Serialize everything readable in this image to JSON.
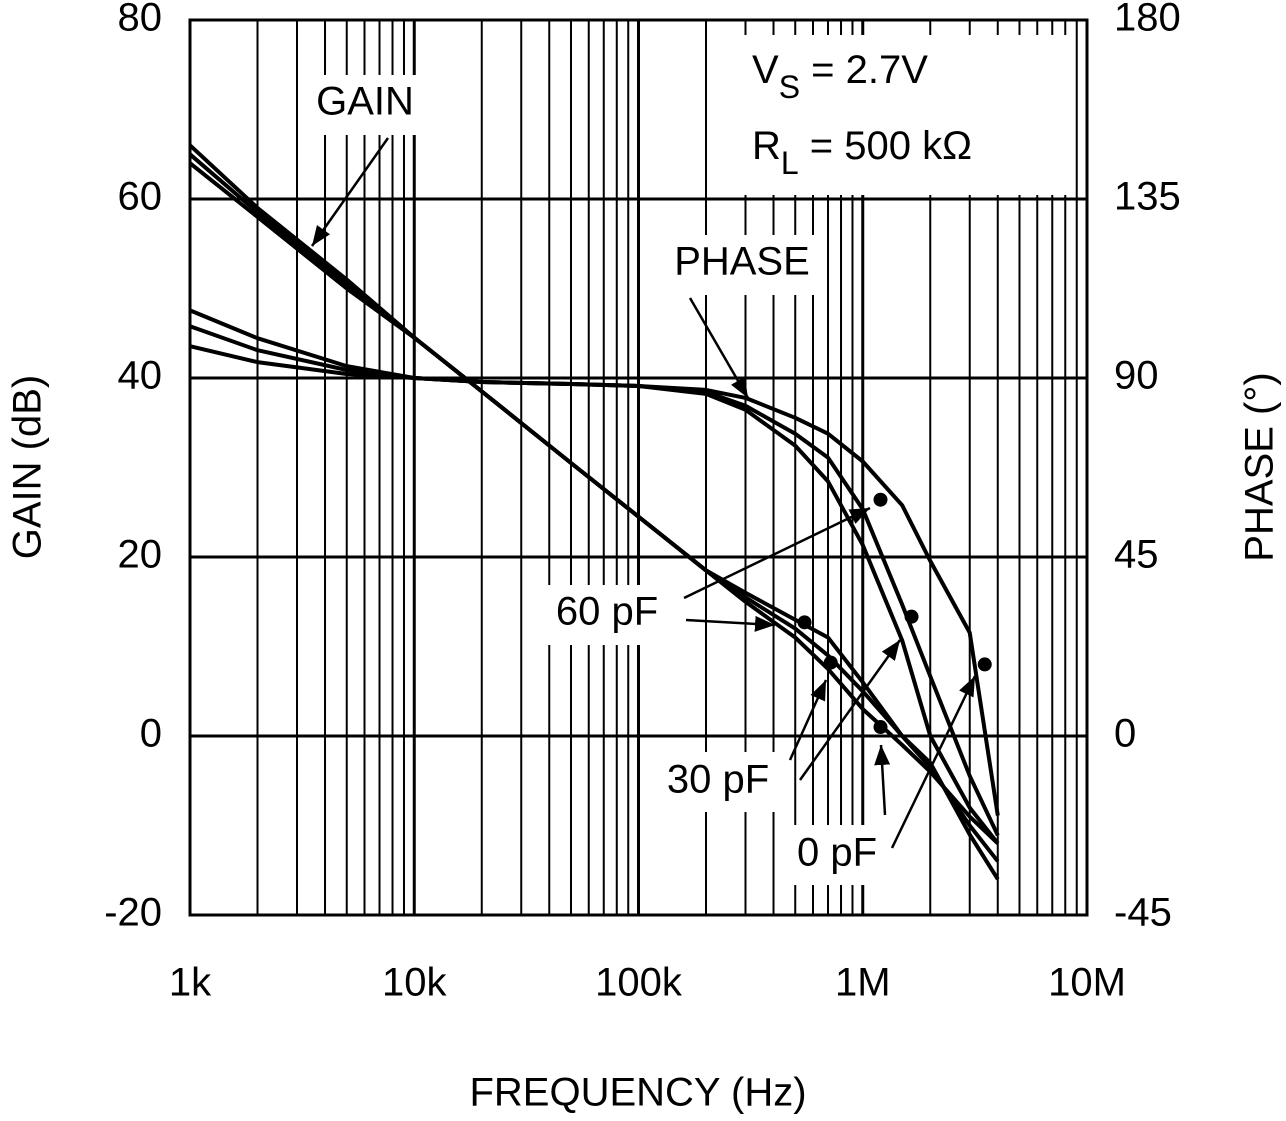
{
  "chart_data": {
    "type": "line",
    "x_axis_label": "FREQUENCY (Hz)",
    "y_axis_label": "GAIN (dB)",
    "y2_axis_label": "PHASE (°)",
    "x_scale": "log",
    "grid": true,
    "minor_grid": true,
    "xlim": [
      1000,
      10000000
    ],
    "xticks": [
      {
        "value": 1000,
        "label": "1k"
      },
      {
        "value": 10000,
        "label": "10k"
      },
      {
        "value": 100000,
        "label": "100k"
      },
      {
        "value": 1000000,
        "label": "1M"
      },
      {
        "value": 10000000,
        "label": "10M"
      }
    ],
    "ylim": [
      -20,
      80
    ],
    "yticks": [
      80,
      60,
      40,
      20,
      0,
      -20
    ],
    "y2lim": [
      -45,
      180
    ],
    "y2ticks": [
      180,
      135,
      90,
      45,
      0,
      -45
    ],
    "gain_label": "GAIN",
    "phase_label": "PHASE",
    "conditions": [
      {
        "main": "V",
        "sub": "S",
        "rest": " = 2.7V"
      },
      {
        "main": "R",
        "sub": "L",
        "rest": " = 500 kΩ"
      }
    ],
    "x": [
      1000,
      2000,
      5000,
      10000,
      20000,
      50000,
      100000,
      200000,
      300000,
      500000,
      700000,
      1000000,
      1500000,
      2000000,
      3000000,
      4000000
    ],
    "series": [
      {
        "name": "60 pF",
        "color": "#000000",
        "gain": [
          66,
          59,
          51,
          44.5,
          38.5,
          30.5,
          24.5,
          18.5,
          16,
          13,
          11,
          6,
          0,
          -3,
          -11,
          -16
        ],
        "phase": [
          107,
          100,
          93,
          90,
          89,
          88.5,
          88,
          86,
          82,
          73,
          64,
          48,
          24,
          0,
          -18,
          -27
        ],
        "gain_marker": [
          550000,
          12.7
        ],
        "phase_marker": [
          1200000,
          59.4
        ]
      },
      {
        "name": "30 pF",
        "color": "#000000",
        "gain": [
          65,
          58.5,
          50.5,
          44.5,
          38.5,
          30.5,
          24.5,
          18.5,
          15.5,
          12,
          9,
          5,
          0,
          -3.5,
          -10,
          -14
        ],
        "phase": [
          103,
          97,
          92,
          90,
          89,
          88.5,
          88,
          86.5,
          83,
          76,
          70,
          57,
          33,
          15,
          -10,
          -25
        ],
        "gain_marker": [
          720000,
          8.2
        ],
        "phase_marker": [
          1650000,
          30
        ]
      },
      {
        "name": "0 pF",
        "color": "#000000",
        "gain": [
          64,
          58,
          50,
          44.5,
          38.5,
          30.5,
          24.5,
          18.5,
          15,
          11,
          7.5,
          3,
          -1,
          -4,
          -9,
          -12
        ],
        "phase": [
          98,
          94,
          91,
          90,
          89,
          88.5,
          88,
          87,
          85,
          80,
          76,
          69,
          58,
          44,
          26,
          -20
        ],
        "gain_marker": [
          1200000,
          1
        ],
        "phase_marker": [
          3500000,
          18
        ]
      }
    ]
  }
}
